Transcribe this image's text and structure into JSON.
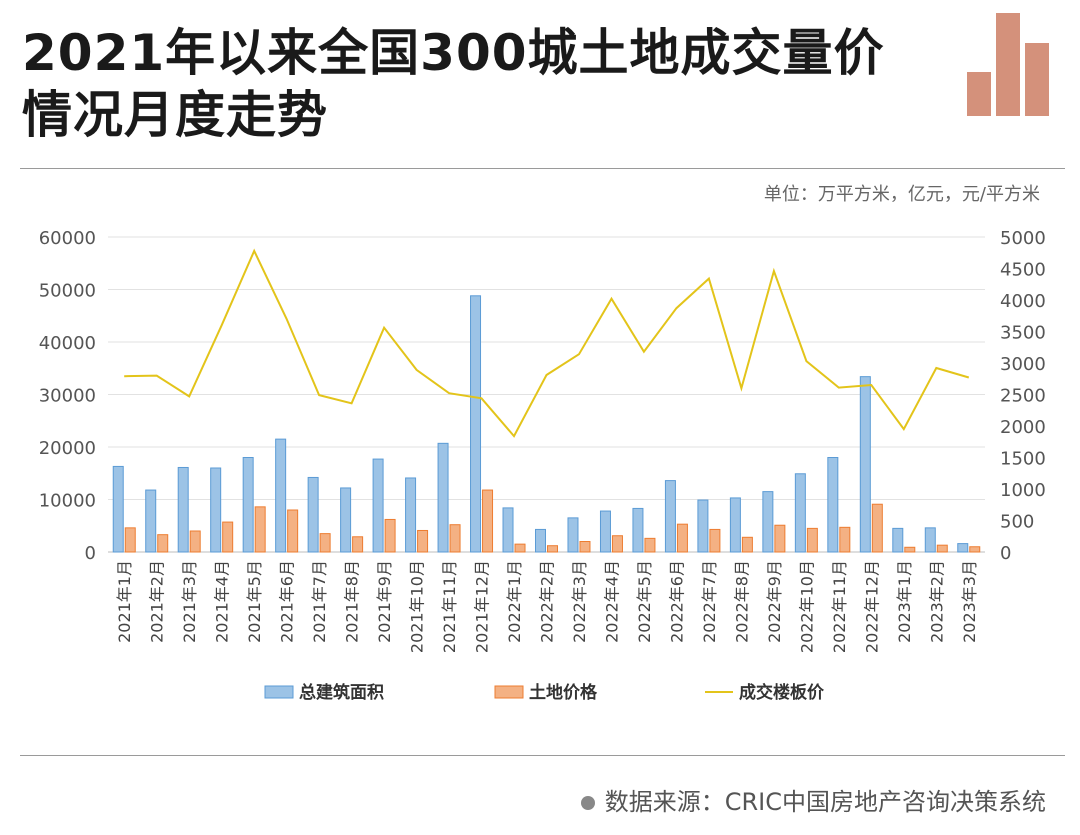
{
  "title": "2021年以来全国300城土地成交量价情况月度走势",
  "unit_note": "单位：万平方米，亿元，元/平方米",
  "source": "数据来源：CRIC中国房地产咨询决策系统",
  "logo_icon": "bar-chart-logo-icon",
  "colors": {
    "area": "#9cc3e6",
    "area_border": "#5b9bd5",
    "price": "#f4b183",
    "price_border": "#ed7d31",
    "floor": "#e3c41a",
    "logo": "#d4917b"
  },
  "chart_data": {
    "type": "bar",
    "categories": [
      "2021年1月",
      "2021年2月",
      "2021年3月",
      "2021年4月",
      "2021年5月",
      "2021年6月",
      "2021年7月",
      "2021年8月",
      "2021年9月",
      "2021年10月",
      "2021年11月",
      "2021年12月",
      "2022年1月",
      "2022年2月",
      "2022年3月",
      "2022年4月",
      "2022年5月",
      "2022年6月",
      "2022年7月",
      "2022年8月",
      "2022年9月",
      "2022年10月",
      "2022年11月",
      "2022年12月",
      "2023年1月",
      "2023年2月",
      "2023年3月"
    ],
    "series": [
      {
        "name": "总建筑面积",
        "type": "bar",
        "axis": "left",
        "values": [
          16300,
          11800,
          16100,
          16000,
          18000,
          21500,
          14200,
          12200,
          17700,
          14100,
          20700,
          48800,
          8400,
          4300,
          6500,
          7800,
          8300,
          13600,
          9900,
          10300,
          11500,
          14900,
          18000,
          33400,
          4500,
          4600,
          1600
        ]
      },
      {
        "name": "土地价格",
        "type": "bar",
        "axis": "left",
        "values": [
          4600,
          3300,
          4000,
          5700,
          8600,
          8000,
          3500,
          2900,
          6200,
          4100,
          5200,
          11800,
          1500,
          1200,
          2000,
          3100,
          2600,
          5300,
          4300,
          2800,
          5100,
          4500,
          4700,
          9100,
          900,
          1300,
          1000
        ]
      },
      {
        "name": "成交楼板价",
        "type": "line",
        "axis": "right",
        "values": [
          2790,
          2800,
          2470,
          3600,
          4780,
          3700,
          2490,
          2360,
          3560,
          2890,
          2520,
          2440,
          1840,
          2810,
          3140,
          4020,
          3180,
          3870,
          4340,
          2600,
          4460,
          3030,
          2610,
          2650,
          1950,
          2920,
          2770
        ]
      }
    ],
    "yleft": {
      "min": 0,
      "max": 60000,
      "ticks": [
        "0",
        "10000",
        "20000",
        "30000",
        "40000",
        "50000",
        "60000"
      ]
    },
    "yright": {
      "min": 0,
      "max": 5000,
      "ticks": [
        "0",
        "500",
        "1000",
        "1500",
        "2000",
        "2500",
        "3000",
        "3500",
        "4000",
        "4500",
        "5000"
      ]
    },
    "grid": true,
    "legend": "bottom"
  }
}
